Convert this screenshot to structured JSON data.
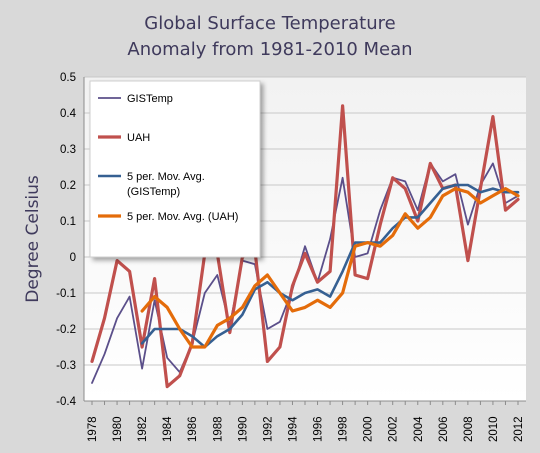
{
  "chart_data": {
    "type": "line",
    "title_lines": [
      "Global Surface Temperature",
      "Anomaly from 1981-2010 Mean"
    ],
    "xlabel": "",
    "ylabel": "Degree Celsius",
    "x": [
      1978,
      1979,
      1980,
      1981,
      1982,
      1983,
      1984,
      1985,
      1986,
      1987,
      1988,
      1989,
      1990,
      1991,
      1992,
      1993,
      1994,
      1995,
      1996,
      1997,
      1998,
      1999,
      2000,
      2001,
      2002,
      2003,
      2004,
      2005,
      2006,
      2007,
      2008,
      2009,
      2010,
      2011,
      2012
    ],
    "x_ticks": [
      1978,
      1980,
      1982,
      1984,
      1986,
      1988,
      1990,
      1992,
      1994,
      1996,
      1998,
      2000,
      2002,
      2004,
      2006,
      2008,
      2010,
      2012
    ],
    "y_ticks": [
      0.5,
      0.4,
      0.3,
      0.2,
      0.1,
      0,
      -0.1,
      -0.2,
      -0.3,
      -0.4
    ],
    "ylim": [
      -0.4,
      0.5
    ],
    "grid": "horizontal",
    "legend_position": "top-left",
    "series": [
      {
        "name": "GISTemp",
        "color": "#5b4f8a",
        "values": [
          -0.35,
          -0.27,
          -0.17,
          -0.11,
          -0.31,
          -0.12,
          -0.28,
          -0.32,
          -0.24,
          -0.1,
          -0.05,
          -0.19,
          -0.01,
          -0.02,
          -0.2,
          -0.18,
          -0.09,
          0.03,
          -0.07,
          0.05,
          0.22,
          0.0,
          0.01,
          0.13,
          0.22,
          0.21,
          0.13,
          0.26,
          0.21,
          0.23,
          0.09,
          0.2,
          0.26,
          0.15,
          0.17
        ]
      },
      {
        "name": "UAH",
        "color": "#c0504d",
        "values": [
          -0.29,
          -0.17,
          -0.01,
          -0.04,
          -0.25,
          -0.06,
          -0.36,
          -0.33,
          -0.24,
          0.01,
          0.01,
          -0.21,
          0.0,
          0.02,
          -0.29,
          -0.25,
          -0.08,
          0.01,
          -0.07,
          -0.04,
          0.42,
          -0.05,
          -0.06,
          0.09,
          0.22,
          0.19,
          0.1,
          0.26,
          0.19,
          0.2,
          -0.01,
          0.19,
          0.39,
          0.13,
          0.16
        ]
      },
      {
        "name": "5 per. Mov. Avg. (GISTemp)",
        "color": "#366092",
        "values": [
          null,
          null,
          null,
          null,
          -0.24,
          -0.2,
          -0.2,
          -0.2,
          -0.22,
          -0.25,
          -0.22,
          -0.2,
          -0.16,
          -0.09,
          -0.07,
          -0.1,
          -0.12,
          -0.1,
          -0.09,
          -0.11,
          -0.04,
          0.04,
          0.04,
          0.04,
          0.08,
          0.11,
          0.11,
          0.15,
          0.19,
          0.2,
          0.2,
          0.18,
          0.19,
          0.18,
          0.18
        ]
      },
      {
        "name": "5 per. Mov. Avg. (UAH)",
        "color": "#e46c0a",
        "values": [
          null,
          null,
          null,
          null,
          -0.15,
          -0.11,
          -0.14,
          -0.2,
          -0.25,
          -0.25,
          -0.19,
          -0.17,
          -0.14,
          -0.08,
          -0.05,
          -0.1,
          -0.15,
          -0.14,
          -0.12,
          -0.14,
          -0.1,
          0.03,
          0.04,
          0.03,
          0.06,
          0.12,
          0.08,
          0.11,
          0.17,
          0.19,
          0.18,
          0.15,
          0.17,
          0.19,
          0.17
        ]
      }
    ]
  },
  "legend": {
    "items": [
      {
        "lines": [
          "GISTemp"
        ],
        "color": "#5b4f8a"
      },
      {
        "lines": [
          "UAH"
        ],
        "color": "#c0504d"
      },
      {
        "lines": [
          "5 per. Mov. Avg.",
          "(GISTemp)"
        ],
        "color": "#366092"
      },
      {
        "lines": [
          "5 per. Mov. Avg. (UAH)"
        ],
        "color": "#e46c0a"
      }
    ]
  }
}
